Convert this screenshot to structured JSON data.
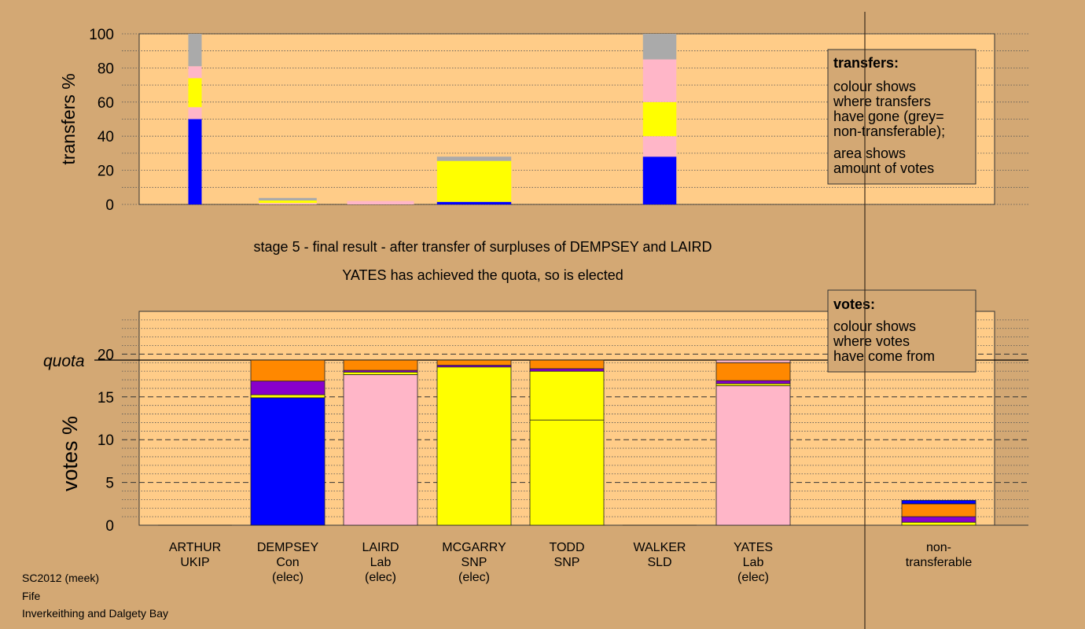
{
  "chart_data": [
    {
      "type": "bar",
      "title": "",
      "ylabel": "transfers %",
      "ylim": [
        0,
        100
      ],
      "yticks": [
        0,
        20,
        40,
        60,
        80,
        100
      ],
      "legend": {
        "title": "transfers:",
        "lines": [
          "colour shows",
          "where transfers",
          "have gone (grey=",
          "non-transferable);",
          "area shows",
          "amount of votes"
        ],
        "placement": "top-right"
      },
      "series": [
        {
          "name": "",
          "color": "#0000ff",
          "values": [
            50,
            0,
            0,
            1.5,
            0,
            28,
            0
          ]
        },
        {
          "name": "",
          "color": "#ffb6c8",
          "values": [
            7,
            0.8,
            2,
            0,
            0,
            12,
            0
          ]
        },
        {
          "name": "",
          "color": "#ffff00",
          "values": [
            17,
            1.5,
            0,
            24,
            0,
            20,
            0
          ]
        },
        {
          "name": "",
          "color": "#ffb6c8",
          "values": [
            7,
            0,
            0,
            0,
            0,
            25,
            0
          ]
        },
        {
          "name": "",
          "color": "#aaaaaa",
          "values": [
            19,
            1.5,
            0,
            2.5,
            0,
            15,
            0
          ]
        }
      ],
      "bar_widths": [
        0.18,
        0.78,
        0.9,
        1.0,
        0,
        0.45,
        0
      ]
    },
    {
      "type": "bar",
      "title": "",
      "ylabel": "votes %",
      "ylim": [
        0,
        25
      ],
      "yticks": [
        0,
        5,
        10,
        15,
        20
      ],
      "quota_label": "quota",
      "quota": 19.3,
      "legend": {
        "title": "votes:",
        "lines": [
          "colour shows",
          "where votes",
          "have come from"
        ],
        "placement": "top-right"
      },
      "categories": [
        {
          "name": "ARTHUR",
          "party": "UKIP",
          "note": ""
        },
        {
          "name": "DEMPSEY",
          "party": "Con",
          "note": "(elec)"
        },
        {
          "name": "LAIRD",
          "party": "Lab",
          "note": "(elec)"
        },
        {
          "name": "MCGARRY",
          "party": "SNP",
          "note": "(elec)"
        },
        {
          "name": "TODD",
          "party": "SNP",
          "note": ""
        },
        {
          "name": "WALKER",
          "party": "SLD",
          "note": ""
        },
        {
          "name": "YATES",
          "party": "Lab",
          "note": "(elec)"
        },
        {
          "name": "non-",
          "party": "transferable",
          "note": ""
        }
      ],
      "stacks": [
        [],
        [
          {
            "v": 14.9,
            "c": "#0000ff"
          },
          {
            "v": 0.35,
            "c": "#ffff00"
          },
          {
            "v": 1.6,
            "c": "#8800cc"
          },
          {
            "v": 2.45,
            "c": "#ff8800"
          }
        ],
        [
          {
            "v": 17.6,
            "c": "#ffb6c8"
          },
          {
            "v": 0.3,
            "c": "#ffff00"
          },
          {
            "v": 0.2,
            "c": "#8800cc"
          },
          {
            "v": 1.2,
            "c": "#ff8800"
          }
        ],
        [
          {
            "v": 18.5,
            "c": "#ffff00"
          },
          {
            "v": 0.2,
            "c": "#8800cc"
          },
          {
            "v": 0.6,
            "c": "#ff8800"
          }
        ],
        [
          {
            "v": 12.3,
            "c": "#ffff00"
          },
          {
            "v": 5.7,
            "c": "#ffff00"
          },
          {
            "v": 0.3,
            "c": "#8800cc"
          },
          {
            "v": 1.0,
            "c": "#ff8800"
          }
        ],
        [],
        [
          {
            "v": 16.3,
            "c": "#ffb6c8"
          },
          {
            "v": 0.25,
            "c": "#ffff00"
          },
          {
            "v": 0.35,
            "c": "#8800cc"
          },
          {
            "v": 2.1,
            "c": "#ff8800"
          },
          {
            "v": 0.3,
            "c": "#ffb6c8"
          }
        ],
        [
          {
            "v": 0.35,
            "c": "#ffff00"
          },
          {
            "v": 0.65,
            "c": "#8800cc"
          },
          {
            "v": 1.5,
            "c": "#ff8800"
          },
          {
            "v": 0.4,
            "c": "#0000ff"
          }
        ]
      ]
    }
  ],
  "captions": {
    "line1": "stage 5 - final result - after transfer of surpluses of DEMPSEY and LAIRD",
    "line2": "YATES has achieved the quota, so is elected"
  },
  "footer": {
    "line1": "SC2012 (meek)",
    "line2": "Fife",
    "line3": "Inverkeithing and Dalgety Bay"
  },
  "colors": {
    "background": "#d3a874",
    "plot_area": "#ffcc88",
    "legend_box": "#d3a874"
  }
}
